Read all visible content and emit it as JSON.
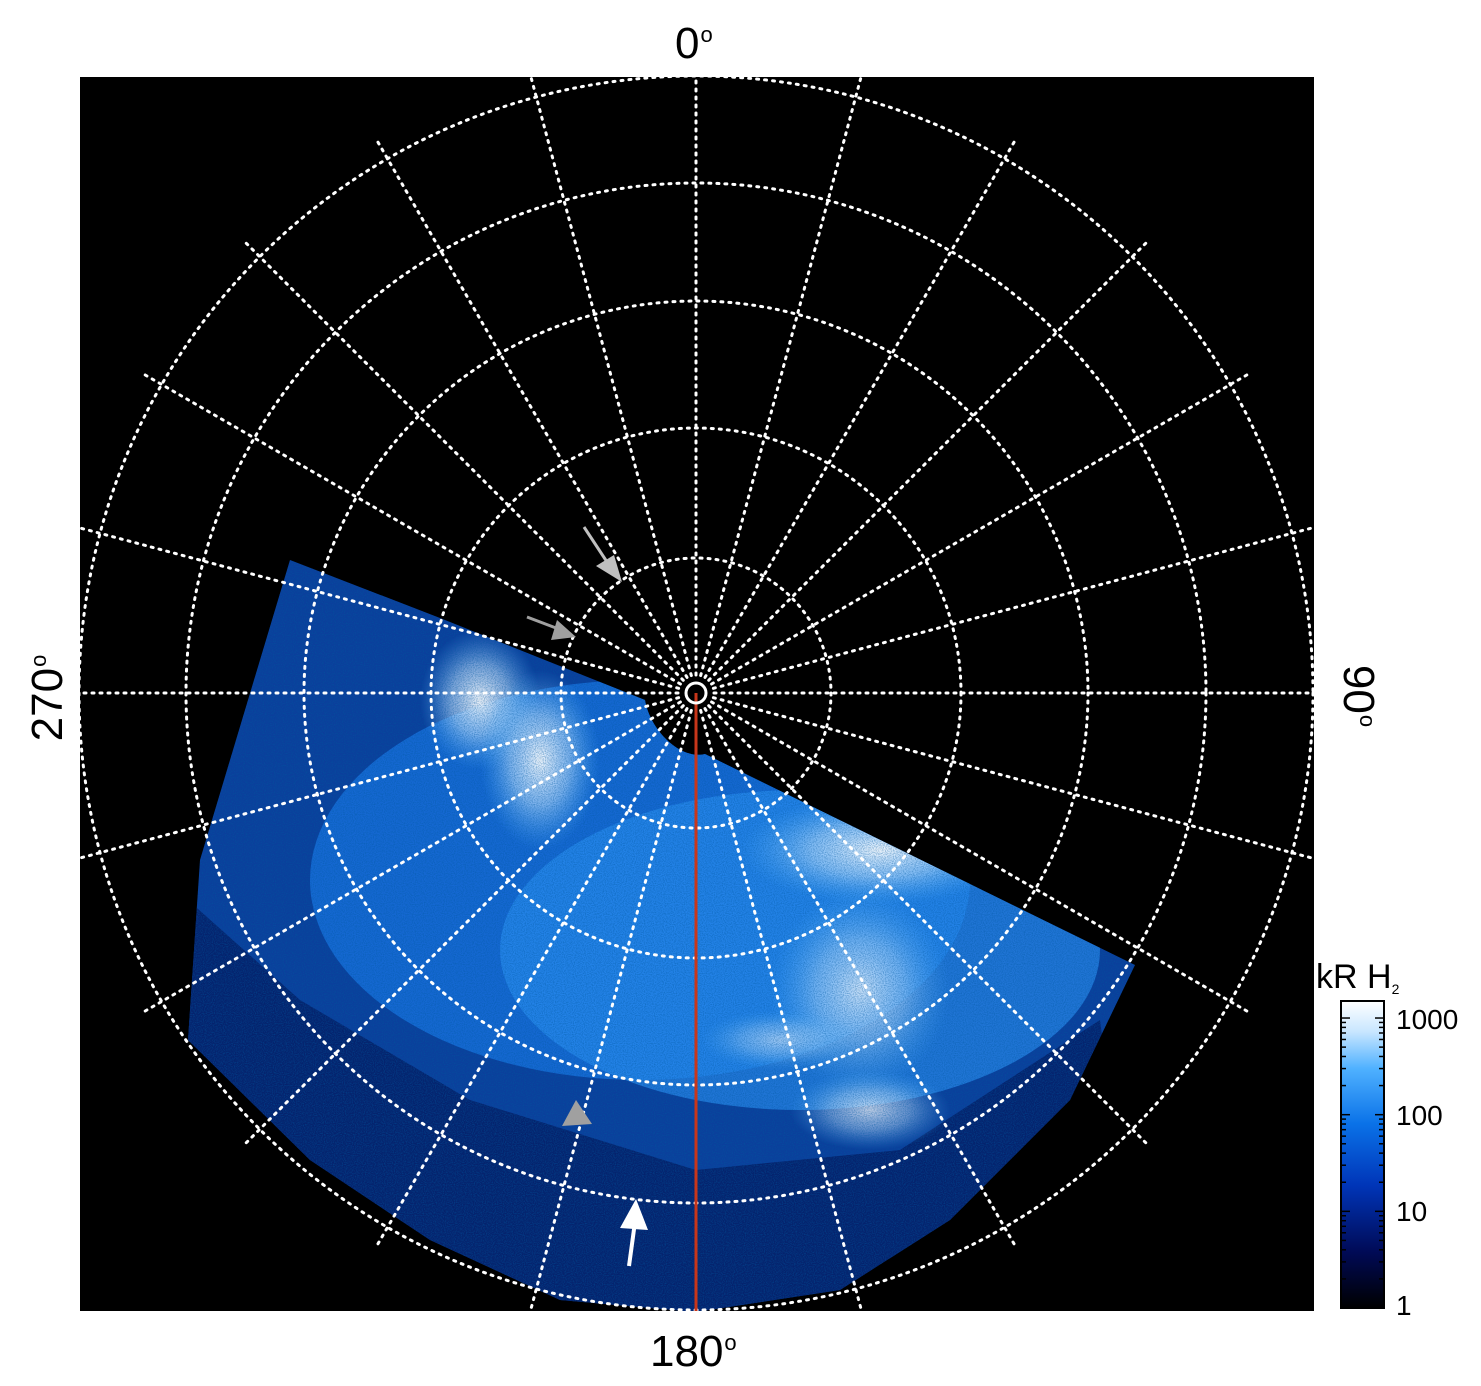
{
  "figure": {
    "angle_labels": {
      "top": "0",
      "right": "90",
      "bottom": "180",
      "left": "270",
      "degree_symbol": "o"
    },
    "colorbar": {
      "title": "kR H",
      "title_subscript": "2",
      "tick_labels": [
        "1000",
        "100",
        "10",
        "1"
      ],
      "scale": "log",
      "range": [
        1,
        1500
      ],
      "colors": [
        "#000000",
        "#000a55",
        "#0035b8",
        "#0a72e8",
        "#4fb1ff",
        "#c8e6ff",
        "#ffffff"
      ]
    },
    "grid": {
      "style": "dotted",
      "color": "#ffffff",
      "rings": 5,
      "meridian_spacing_deg": 15
    },
    "colors": {
      "background": "#000000",
      "meridian_line": "#c8361a",
      "arrow_white": "#ffffff",
      "arrow_gray": "#a0a0a0"
    }
  }
}
